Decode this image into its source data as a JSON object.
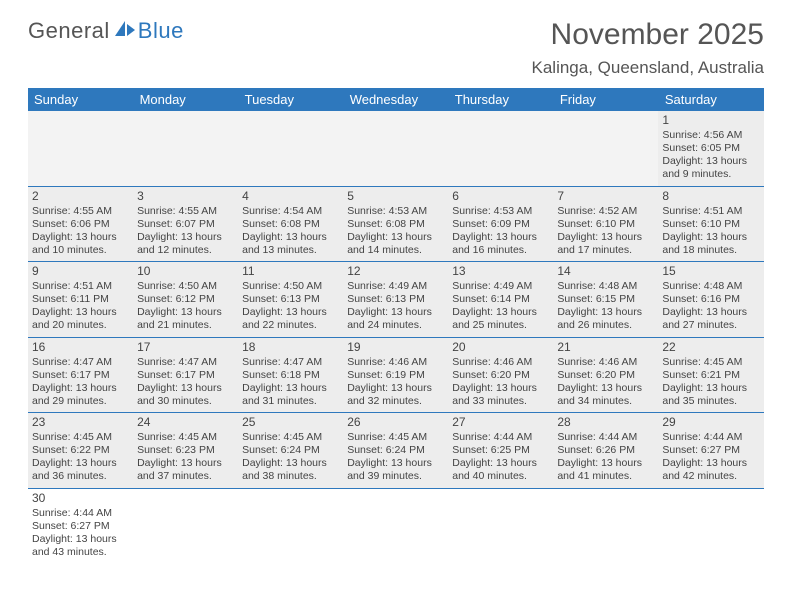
{
  "logo": {
    "text_general": "General",
    "text_blue": "Blue"
  },
  "title": "November 2025",
  "location": "Kalinga, Queensland, Australia",
  "day_headers": [
    "Sunday",
    "Monday",
    "Tuesday",
    "Wednesday",
    "Thursday",
    "Friday",
    "Saturday"
  ],
  "colors": {
    "header_bg": "#2e78bd",
    "header_text": "#ffffff",
    "cell_bg": "#ededed",
    "border": "#2e78bd",
    "text": "#444444"
  },
  "weeks": [
    [
      null,
      null,
      null,
      null,
      null,
      null,
      {
        "n": "1",
        "sunrise": "Sunrise: 4:56 AM",
        "sunset": "Sunset: 6:05 PM",
        "daylight": "Daylight: 13 hours and 9 minutes."
      }
    ],
    [
      {
        "n": "2",
        "sunrise": "Sunrise: 4:55 AM",
        "sunset": "Sunset: 6:06 PM",
        "daylight": "Daylight: 13 hours and 10 minutes."
      },
      {
        "n": "3",
        "sunrise": "Sunrise: 4:55 AM",
        "sunset": "Sunset: 6:07 PM",
        "daylight": "Daylight: 13 hours and 12 minutes."
      },
      {
        "n": "4",
        "sunrise": "Sunrise: 4:54 AM",
        "sunset": "Sunset: 6:08 PM",
        "daylight": "Daylight: 13 hours and 13 minutes."
      },
      {
        "n": "5",
        "sunrise": "Sunrise: 4:53 AM",
        "sunset": "Sunset: 6:08 PM",
        "daylight": "Daylight: 13 hours and 14 minutes."
      },
      {
        "n": "6",
        "sunrise": "Sunrise: 4:53 AM",
        "sunset": "Sunset: 6:09 PM",
        "daylight": "Daylight: 13 hours and 16 minutes."
      },
      {
        "n": "7",
        "sunrise": "Sunrise: 4:52 AM",
        "sunset": "Sunset: 6:10 PM",
        "daylight": "Daylight: 13 hours and 17 minutes."
      },
      {
        "n": "8",
        "sunrise": "Sunrise: 4:51 AM",
        "sunset": "Sunset: 6:10 PM",
        "daylight": "Daylight: 13 hours and 18 minutes."
      }
    ],
    [
      {
        "n": "9",
        "sunrise": "Sunrise: 4:51 AM",
        "sunset": "Sunset: 6:11 PM",
        "daylight": "Daylight: 13 hours and 20 minutes."
      },
      {
        "n": "10",
        "sunrise": "Sunrise: 4:50 AM",
        "sunset": "Sunset: 6:12 PM",
        "daylight": "Daylight: 13 hours and 21 minutes."
      },
      {
        "n": "11",
        "sunrise": "Sunrise: 4:50 AM",
        "sunset": "Sunset: 6:13 PM",
        "daylight": "Daylight: 13 hours and 22 minutes."
      },
      {
        "n": "12",
        "sunrise": "Sunrise: 4:49 AM",
        "sunset": "Sunset: 6:13 PM",
        "daylight": "Daylight: 13 hours and 24 minutes."
      },
      {
        "n": "13",
        "sunrise": "Sunrise: 4:49 AM",
        "sunset": "Sunset: 6:14 PM",
        "daylight": "Daylight: 13 hours and 25 minutes."
      },
      {
        "n": "14",
        "sunrise": "Sunrise: 4:48 AM",
        "sunset": "Sunset: 6:15 PM",
        "daylight": "Daylight: 13 hours and 26 minutes."
      },
      {
        "n": "15",
        "sunrise": "Sunrise: 4:48 AM",
        "sunset": "Sunset: 6:16 PM",
        "daylight": "Daylight: 13 hours and 27 minutes."
      }
    ],
    [
      {
        "n": "16",
        "sunrise": "Sunrise: 4:47 AM",
        "sunset": "Sunset: 6:17 PM",
        "daylight": "Daylight: 13 hours and 29 minutes."
      },
      {
        "n": "17",
        "sunrise": "Sunrise: 4:47 AM",
        "sunset": "Sunset: 6:17 PM",
        "daylight": "Daylight: 13 hours and 30 minutes."
      },
      {
        "n": "18",
        "sunrise": "Sunrise: 4:47 AM",
        "sunset": "Sunset: 6:18 PM",
        "daylight": "Daylight: 13 hours and 31 minutes."
      },
      {
        "n": "19",
        "sunrise": "Sunrise: 4:46 AM",
        "sunset": "Sunset: 6:19 PM",
        "daylight": "Daylight: 13 hours and 32 minutes."
      },
      {
        "n": "20",
        "sunrise": "Sunrise: 4:46 AM",
        "sunset": "Sunset: 6:20 PM",
        "daylight": "Daylight: 13 hours and 33 minutes."
      },
      {
        "n": "21",
        "sunrise": "Sunrise: 4:46 AM",
        "sunset": "Sunset: 6:20 PM",
        "daylight": "Daylight: 13 hours and 34 minutes."
      },
      {
        "n": "22",
        "sunrise": "Sunrise: 4:45 AM",
        "sunset": "Sunset: 6:21 PM",
        "daylight": "Daylight: 13 hours and 35 minutes."
      }
    ],
    [
      {
        "n": "23",
        "sunrise": "Sunrise: 4:45 AM",
        "sunset": "Sunset: 6:22 PM",
        "daylight": "Daylight: 13 hours and 36 minutes."
      },
      {
        "n": "24",
        "sunrise": "Sunrise: 4:45 AM",
        "sunset": "Sunset: 6:23 PM",
        "daylight": "Daylight: 13 hours and 37 minutes."
      },
      {
        "n": "25",
        "sunrise": "Sunrise: 4:45 AM",
        "sunset": "Sunset: 6:24 PM",
        "daylight": "Daylight: 13 hours and 38 minutes."
      },
      {
        "n": "26",
        "sunrise": "Sunrise: 4:45 AM",
        "sunset": "Sunset: 6:24 PM",
        "daylight": "Daylight: 13 hours and 39 minutes."
      },
      {
        "n": "27",
        "sunrise": "Sunrise: 4:44 AM",
        "sunset": "Sunset: 6:25 PM",
        "daylight": "Daylight: 13 hours and 40 minutes."
      },
      {
        "n": "28",
        "sunrise": "Sunrise: 4:44 AM",
        "sunset": "Sunset: 6:26 PM",
        "daylight": "Daylight: 13 hours and 41 minutes."
      },
      {
        "n": "29",
        "sunrise": "Sunrise: 4:44 AM",
        "sunset": "Sunset: 6:27 PM",
        "daylight": "Daylight: 13 hours and 42 minutes."
      }
    ],
    [
      {
        "n": "30",
        "sunrise": "Sunrise: 4:44 AM",
        "sunset": "Sunset: 6:27 PM",
        "daylight": "Daylight: 13 hours and 43 minutes."
      },
      null,
      null,
      null,
      null,
      null,
      null
    ]
  ]
}
